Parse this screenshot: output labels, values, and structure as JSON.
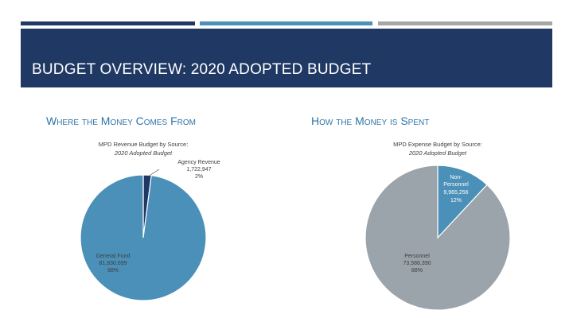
{
  "header": {
    "title": "BUDGET OVERVIEW: 2020 ADOPTED BUDGET",
    "accent_colors": [
      "#1f3864",
      "#4a90b8",
      "#a6a6a6"
    ]
  },
  "sections": {
    "left_heading": "Where the Money Comes From",
    "right_heading": "How the Money is Spent"
  },
  "chart_data": [
    {
      "type": "pie",
      "title": "MPD Revenue Budget by Source:",
      "subtitle": "2020 Adopted Budget",
      "slices": [
        {
          "label": "Agency Revenue",
          "value_text": "1,722,947",
          "percent_text": "2%",
          "value": 1722947,
          "color": "#1f3864"
        },
        {
          "label": "General Fund",
          "value_text": "81,830,699",
          "percent_text": "98%",
          "value": 81830699,
          "color": "#4a90b8"
        }
      ]
    },
    {
      "type": "pie",
      "title": "MPD Expense Budget by Source:",
      "subtitle": "2020 Adopted Budget",
      "slices": [
        {
          "label": "Non-Personnel",
          "value_text": "9,965,256",
          "percent_text": "12%",
          "value": 9965256,
          "color": "#4a90b8"
        },
        {
          "label": "Personnel",
          "value_text": "73,588,390",
          "percent_text": "88%",
          "value": 73588390,
          "color": "#9ba3ab"
        }
      ]
    }
  ]
}
